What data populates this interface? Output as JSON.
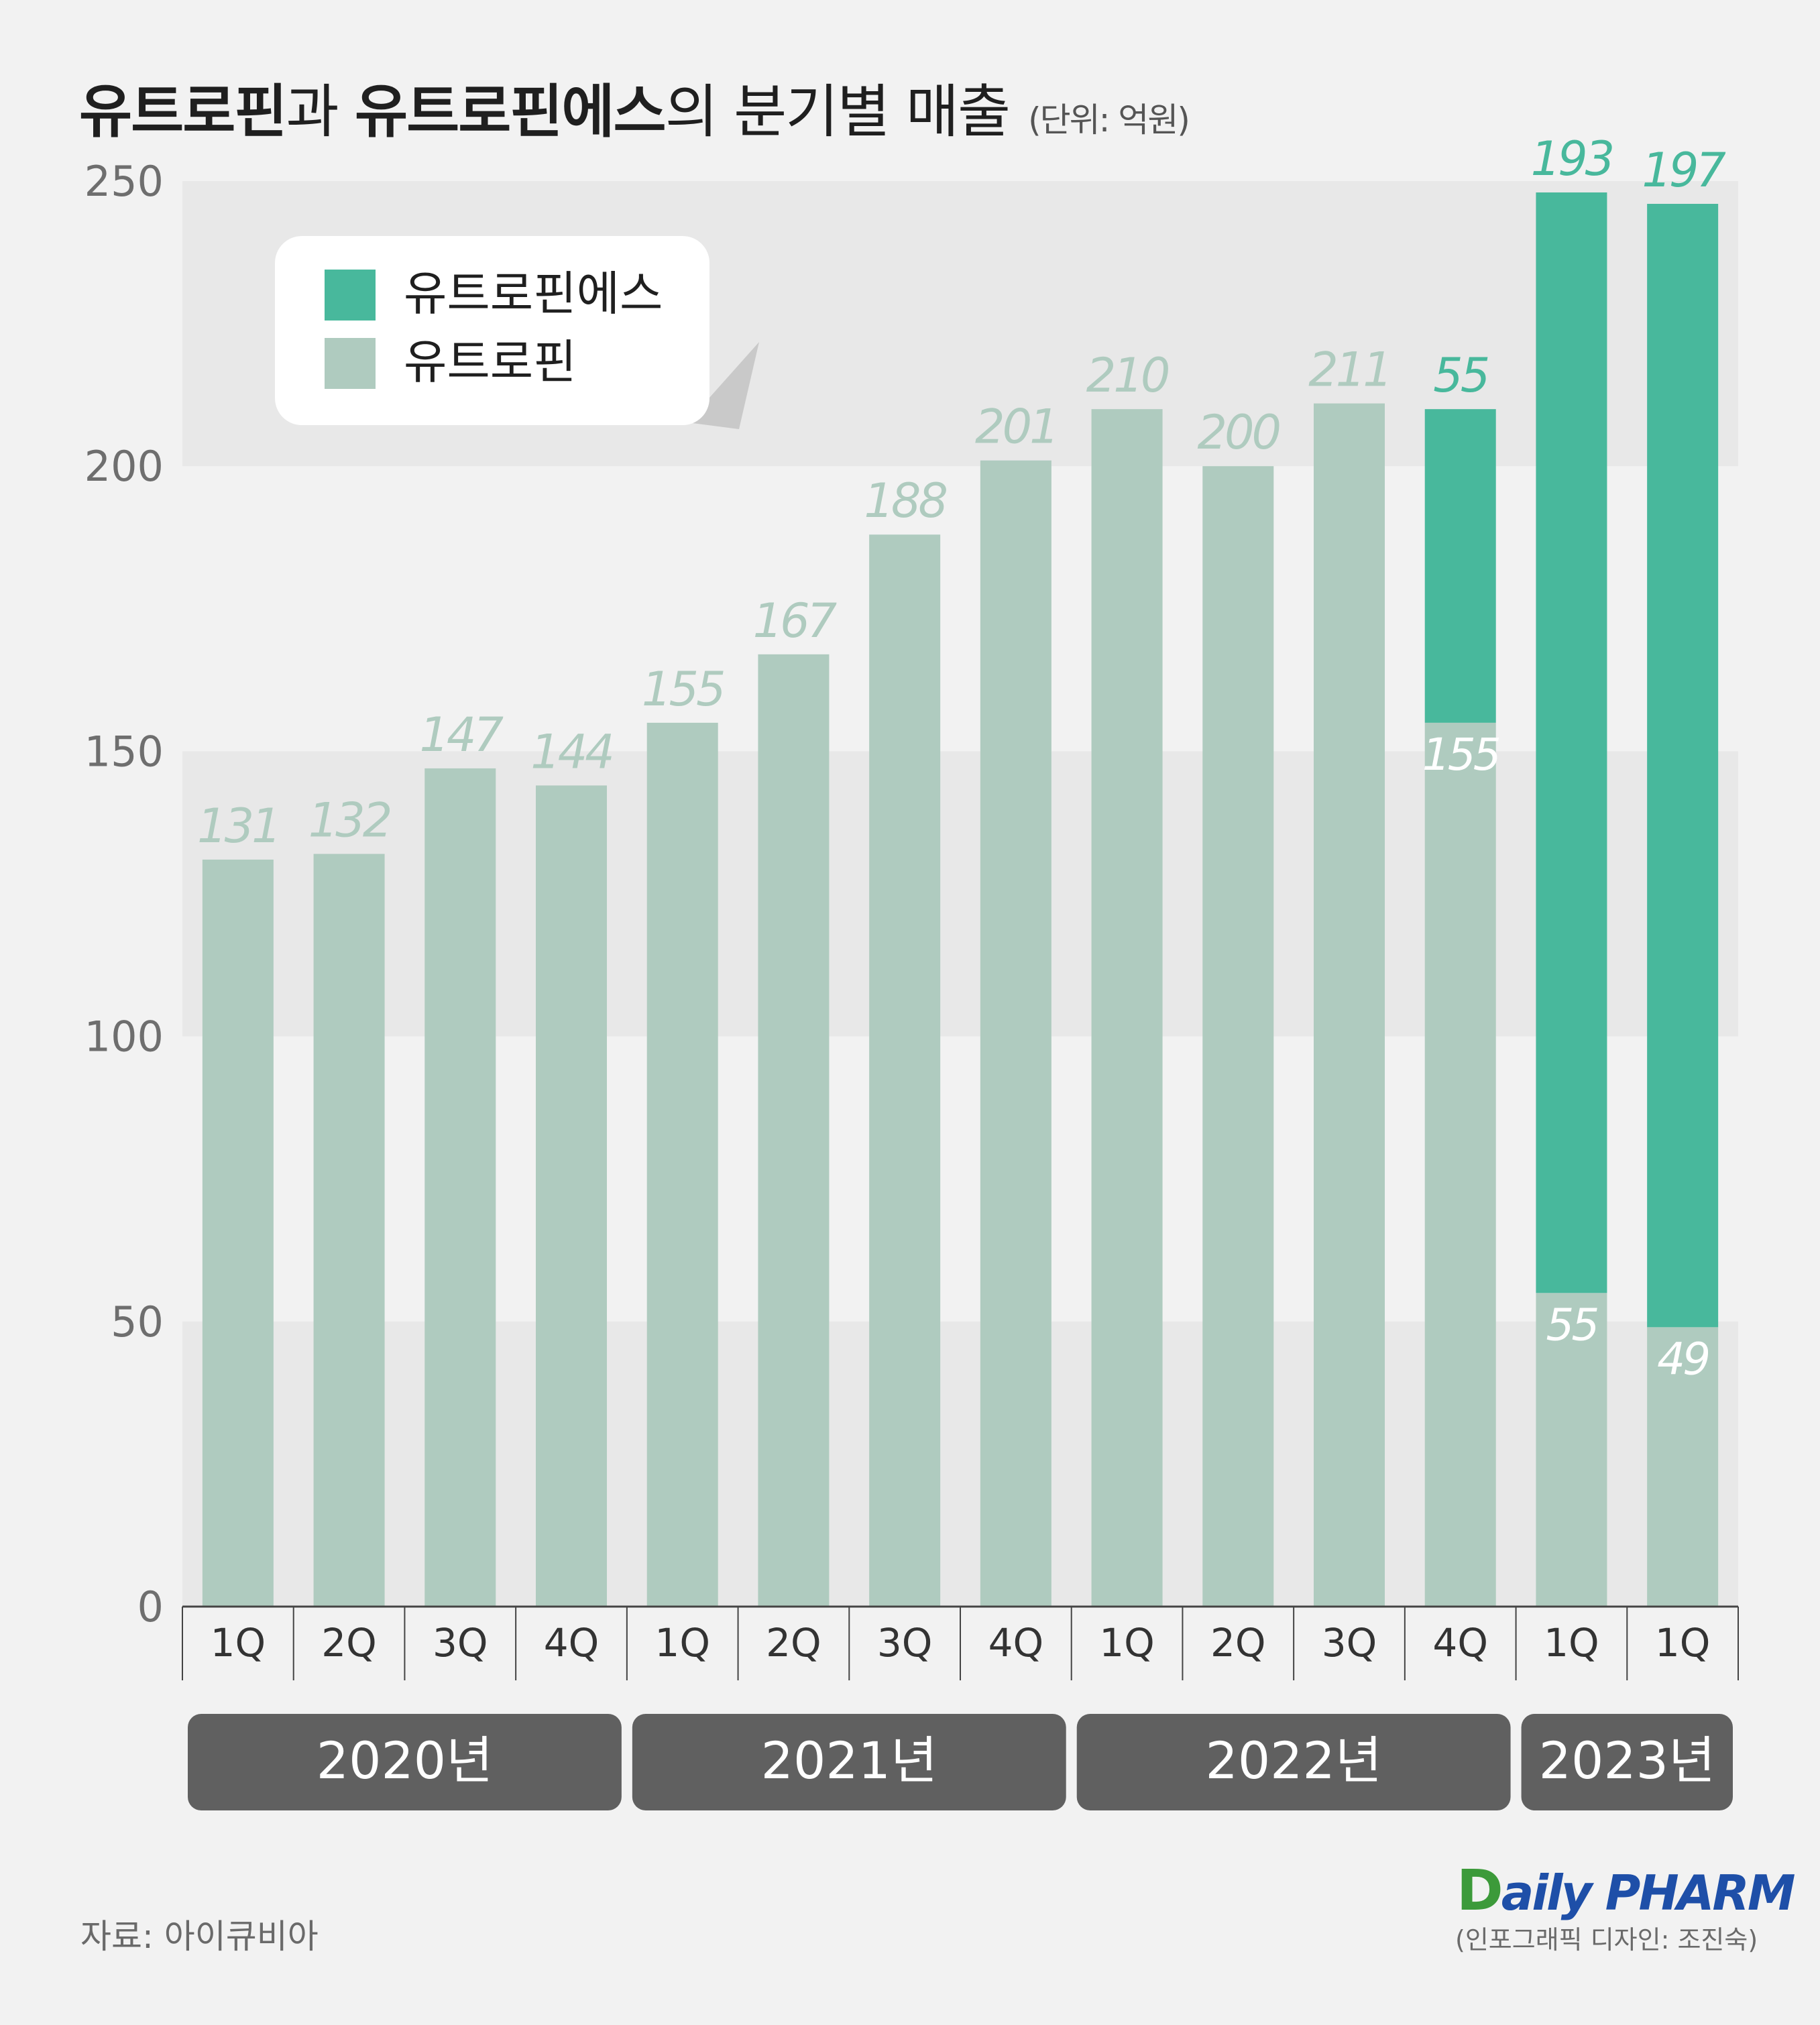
{
  "title": {
    "part1": "유트로핀",
    "part2": "과 ",
    "part3": "유트로핀에스",
    "part4": "의 분기별 매출",
    "unit": "(단위: 억원)"
  },
  "colors": {
    "es": "#48b89c",
    "base": "#afcbbf",
    "year_box": "#606060",
    "background": "#f2f2f2",
    "band": "#e8e8e8",
    "axis_text": "#6e6e6e"
  },
  "chart_data": {
    "type": "bar",
    "stacked": true,
    "categories": [
      "1Q",
      "2Q",
      "3Q",
      "4Q",
      "1Q",
      "2Q",
      "3Q",
      "4Q",
      "1Q",
      "2Q",
      "3Q",
      "4Q",
      "1Q",
      "1Q"
    ],
    "series": [
      {
        "name": "유트로핀",
        "values": [
          131,
          132,
          147,
          144,
          155,
          167,
          188,
          201,
          210,
          200,
          211,
          155,
          55,
          49
        ]
      },
      {
        "name": "유트로핀에스",
        "values": [
          0,
          0,
          0,
          0,
          0,
          0,
          0,
          0,
          0,
          0,
          0,
          55,
          193,
          197
        ]
      }
    ],
    "top_labels": [
      "131",
      "132",
      "147",
      "144",
      "155",
      "167",
      "188",
      "201",
      "210",
      "200",
      "211",
      "55",
      "193",
      "197"
    ],
    "inner_labels": [
      "",
      "",
      "",
      "",
      "",
      "",
      "",
      "",
      "",
      "",
      "",
      "155",
      "55",
      "49"
    ],
    "ylim": [
      0,
      250
    ],
    "yticks": [
      "0",
      "50",
      "100",
      "150",
      "200",
      "250"
    ],
    "year_groups": [
      {
        "label": "2020년",
        "span": 4
      },
      {
        "label": "2021년",
        "span": 4
      },
      {
        "label": "2022년",
        "span": 4
      },
      {
        "label": "2023년",
        "span": 2
      }
    ],
    "legend": {
      "position": "top-left",
      "items": [
        {
          "label": "유트로핀에스",
          "color": "#48b89c"
        },
        {
          "label": "유트로핀",
          "color": "#afcbbf"
        }
      ]
    }
  },
  "footer": {
    "source": "자료: 아이큐비아",
    "logo": "DailyPHARM",
    "credit": "(인포그래픽 디자인: 조진숙)"
  }
}
